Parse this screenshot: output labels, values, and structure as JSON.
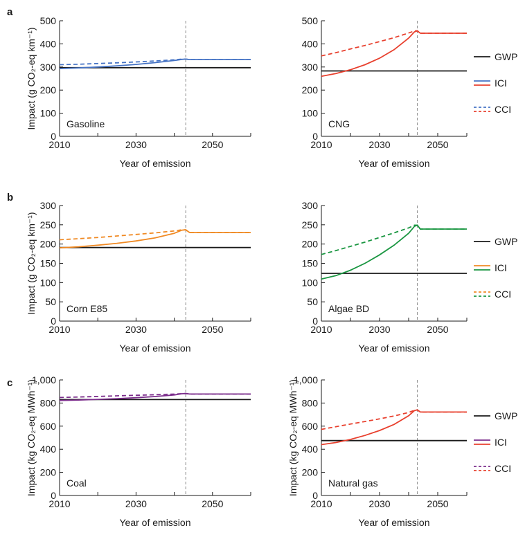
{
  "panel_labels": [
    "a",
    "b",
    "c"
  ],
  "legend": {
    "gwp": "GWP",
    "ici": "ICI",
    "cci": "CCI"
  },
  "colors": {
    "gwp": "#1a1a1a",
    "vline": "#8c8c8c",
    "a_left": "#4472c4",
    "a_right": "#e8402e",
    "b_left": "#f08a24",
    "b_right": "#1a9641",
    "c_left": "#7b2d8b",
    "c_right": "#e8402e"
  },
  "chart_data": [
    {
      "type": "line",
      "panel": "a",
      "label": "Gasoline",
      "xlabel": "Year of emission",
      "ylabel": "Impact (g CO₂-eq km⁻¹)",
      "xlim": [
        2010,
        2060
      ],
      "ylim": [
        0,
        500
      ],
      "xticks": [
        2010,
        2030,
        2050
      ],
      "yticks": [
        0,
        100,
        200,
        300,
        400,
        500
      ],
      "ytick_labels": [
        "0",
        "100",
        "200",
        "300",
        "400",
        "500"
      ],
      "vline_x": 2043,
      "color_key": "a_left",
      "series": [
        {
          "name": "GWP",
          "style": "solid",
          "x": [
            2010,
            2060
          ],
          "y": [
            297,
            297
          ]
        },
        {
          "name": "ICI",
          "style": "solid",
          "x": [
            2010,
            2015,
            2020,
            2025,
            2030,
            2035,
            2040,
            2042,
            2043,
            2044,
            2060
          ],
          "y": [
            293,
            296,
            300,
            305,
            311,
            319,
            328,
            333,
            334,
            332,
            332
          ]
        },
        {
          "name": "CCI",
          "style": "dashed",
          "x": [
            2010,
            2015,
            2020,
            2025,
            2030,
            2035,
            2040,
            2042,
            2043,
            2044,
            2060
          ],
          "y": [
            310,
            312,
            315,
            318,
            322,
            326,
            331,
            334,
            334,
            332,
            332
          ]
        }
      ]
    },
    {
      "type": "line",
      "panel": "a",
      "label": "CNG",
      "xlabel": "Year of emission",
      "ylabel": "",
      "xlim": [
        2010,
        2060
      ],
      "ylim": [
        0,
        500
      ],
      "xticks": [
        2010,
        2030,
        2050
      ],
      "yticks": [
        0,
        100,
        200,
        300,
        400,
        500
      ],
      "ytick_labels": [
        "0",
        "100",
        "200",
        "300",
        "400",
        "500"
      ],
      "vline_x": 2043,
      "color_key": "a_right",
      "series": [
        {
          "name": "GWP",
          "style": "solid",
          "x": [
            2010,
            2060
          ],
          "y": [
            283,
            283
          ]
        },
        {
          "name": "ICI",
          "style": "solid",
          "x": [
            2010,
            2015,
            2020,
            2025,
            2030,
            2035,
            2040,
            2042,
            2043,
            2044,
            2060
          ],
          "y": [
            260,
            272,
            288,
            310,
            338,
            375,
            425,
            452,
            456,
            446,
            446
          ]
        },
        {
          "name": "CCI",
          "style": "dashed",
          "x": [
            2010,
            2015,
            2020,
            2025,
            2030,
            2035,
            2040,
            2042,
            2043,
            2044,
            2060
          ],
          "y": [
            348,
            362,
            378,
            393,
            410,
            427,
            447,
            456,
            457,
            446,
            446
          ]
        }
      ]
    },
    {
      "type": "line",
      "panel": "b",
      "label": "Corn E85",
      "xlabel": "Year of emission",
      "ylabel": "Impact (g CO₂-eq km⁻¹)",
      "xlim": [
        2010,
        2060
      ],
      "ylim": [
        0,
        300
      ],
      "xticks": [
        2010,
        2030,
        2050
      ],
      "yticks": [
        0,
        50,
        100,
        150,
        200,
        250,
        300
      ],
      "ytick_labels": [
        "0",
        "50",
        "100",
        "150",
        "200",
        "250",
        "300"
      ],
      "vline_x": 2043,
      "color_key": "b_left",
      "series": [
        {
          "name": "GWP",
          "style": "solid",
          "x": [
            2010,
            2060
          ],
          "y": [
            191,
            191
          ]
        },
        {
          "name": "ICI",
          "style": "solid",
          "x": [
            2010,
            2015,
            2020,
            2025,
            2030,
            2035,
            2040,
            2042,
            2043,
            2044,
            2060
          ],
          "y": [
            190,
            193,
            197,
            202,
            208,
            216,
            228,
            236,
            237,
            230,
            230
          ]
        },
        {
          "name": "CCI",
          "style": "dashed",
          "x": [
            2010,
            2015,
            2020,
            2025,
            2030,
            2035,
            2040,
            2042,
            2043,
            2044,
            2060
          ],
          "y": [
            211,
            214,
            217,
            221,
            225,
            229,
            234,
            237,
            237,
            230,
            230
          ]
        }
      ]
    },
    {
      "type": "line",
      "panel": "b",
      "label": "Algae BD",
      "xlabel": "Year of emission",
      "ylabel": "",
      "xlim": [
        2010,
        2060
      ],
      "ylim": [
        0,
        300
      ],
      "xticks": [
        2010,
        2030,
        2050
      ],
      "yticks": [
        0,
        50,
        100,
        150,
        200,
        250,
        300
      ],
      "ytick_labels": [
        "0",
        "50",
        "100",
        "150",
        "200",
        "250",
        "300"
      ],
      "vline_x": 2043,
      "color_key": "b_right",
      "series": [
        {
          "name": "GWP",
          "style": "solid",
          "x": [
            2010,
            2060
          ],
          "y": [
            124,
            124
          ]
        },
        {
          "name": "ICI",
          "style": "solid",
          "x": [
            2010,
            2015,
            2020,
            2025,
            2030,
            2035,
            2040,
            2042,
            2043,
            2044,
            2060
          ],
          "y": [
            109,
            118,
            132,
            150,
            172,
            197,
            228,
            246,
            249,
            239,
            239
          ]
        },
        {
          "name": "CCI",
          "style": "dashed",
          "x": [
            2010,
            2015,
            2020,
            2025,
            2030,
            2035,
            2040,
            2042,
            2043,
            2044,
            2060
          ],
          "y": [
            173,
            183,
            194,
            205,
            217,
            229,
            242,
            249,
            249,
            239,
            239
          ]
        }
      ]
    },
    {
      "type": "line",
      "panel": "c",
      "label": "Coal",
      "xlabel": "Year of emission",
      "ylabel": "Impact (kg CO₂-eq MWh⁻¹)",
      "xlim": [
        2010,
        2060
      ],
      "ylim": [
        0,
        1000
      ],
      "xticks": [
        2010,
        2030,
        2050
      ],
      "yticks": [
        0,
        200,
        400,
        600,
        800,
        1000
      ],
      "ytick_labels": [
        "0",
        "200",
        "400",
        "600",
        "800",
        "1,000"
      ],
      "vline_x": 2043,
      "color_key": "c_left",
      "series": [
        {
          "name": "GWP",
          "style": "solid",
          "x": [
            2010,
            2060
          ],
          "y": [
            830,
            830
          ]
        },
        {
          "name": "ICI",
          "style": "solid",
          "x": [
            2010,
            2015,
            2020,
            2025,
            2030,
            2035,
            2040,
            2042,
            2043,
            2044,
            2060
          ],
          "y": [
            822,
            826,
            832,
            838,
            846,
            856,
            870,
            880,
            882,
            878,
            878
          ]
        },
        {
          "name": "CCI",
          "style": "dashed",
          "x": [
            2010,
            2015,
            2020,
            2025,
            2030,
            2035,
            2040,
            2042,
            2043,
            2044,
            2060
          ],
          "y": [
            848,
            852,
            857,
            862,
            867,
            872,
            877,
            881,
            882,
            878,
            878
          ]
        }
      ]
    },
    {
      "type": "line",
      "panel": "c",
      "label": "Natural gas",
      "xlabel": "Year of emission",
      "ylabel": "Impact (kg CO₂-eq MWh⁻¹)",
      "xlim": [
        2010,
        2060
      ],
      "ylim": [
        0,
        1000
      ],
      "xticks": [
        2010,
        2030,
        2050
      ],
      "yticks": [
        0,
        200,
        400,
        600,
        800,
        1000
      ],
      "ytick_labels": [
        "0",
        "200",
        "400",
        "600",
        "800",
        "1,000"
      ],
      "vline_x": 2043,
      "color_key": "c_right",
      "series": [
        {
          "name": "GWP",
          "style": "solid",
          "x": [
            2010,
            2060
          ],
          "y": [
            475,
            475
          ]
        },
        {
          "name": "ICI",
          "style": "solid",
          "x": [
            2010,
            2015,
            2020,
            2025,
            2030,
            2035,
            2040,
            2042,
            2043,
            2044,
            2060
          ],
          "y": [
            440,
            458,
            485,
            520,
            562,
            615,
            690,
            735,
            740,
            722,
            722
          ]
        },
        {
          "name": "CCI",
          "style": "dashed",
          "x": [
            2010,
            2015,
            2020,
            2025,
            2030,
            2035,
            2040,
            2042,
            2043,
            2044,
            2060
          ],
          "y": [
            572,
            595,
            618,
            640,
            663,
            688,
            718,
            738,
            740,
            722,
            722
          ]
        }
      ]
    }
  ]
}
